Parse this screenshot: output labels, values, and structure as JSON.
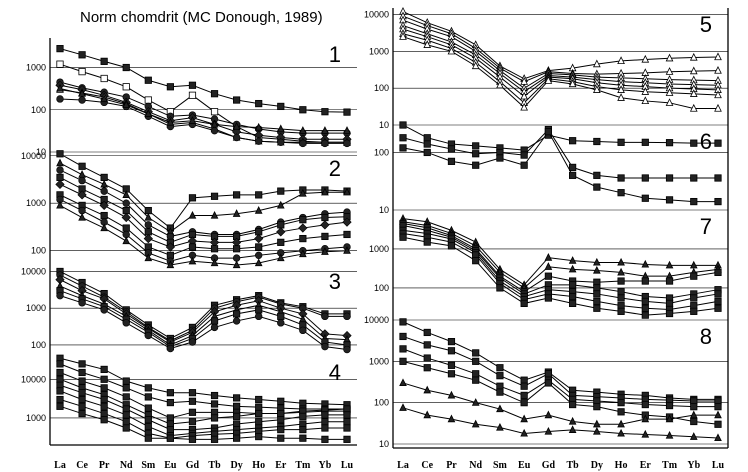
{
  "title": "Norm chomdrit (MC Donough, 1989)",
  "elements": [
    "La",
    "Ce",
    "Pr",
    "Nd",
    "Sm",
    "Eu",
    "Gd",
    "Tb",
    "Dy",
    "Ho",
    "Er",
    "Tm",
    "Yb",
    "Lu"
  ],
  "colors": {
    "axis": "#000000",
    "grid": "#000000",
    "series": "#000000",
    "marker_fill_dark": "#222222",
    "marker_fill_light": "#ffffff"
  },
  "chart_data": [
    {
      "type": "line",
      "label": "1",
      "yscale": "log",
      "ylim": [
        10,
        5000
      ],
      "yticks": [
        "1000",
        "100",
        "10"
      ],
      "grid": true,
      "series": [
        {
          "marker": "square",
          "values": [
            2800,
            2000,
            1400,
            1000,
            500,
            350,
            380,
            240,
            170,
            140,
            120,
            100,
            90,
            88
          ]
        },
        {
          "marker": "square-open",
          "values": [
            1200,
            800,
            550,
            350,
            170,
            90,
            220,
            90,
            40,
            22,
            20,
            18,
            17,
            17
          ]
        },
        {
          "marker": "circle",
          "values": [
            450,
            330,
            260,
            200,
            120,
            70,
            75,
            60,
            45,
            35,
            30,
            28,
            28,
            28
          ]
        },
        {
          "marker": "diamond",
          "values": [
            380,
            300,
            220,
            150,
            90,
            55,
            65,
            45,
            30,
            25,
            22,
            20,
            20,
            20
          ]
        },
        {
          "marker": "triangle-open",
          "values": [
            300,
            250,
            200,
            140,
            80,
            45,
            50,
            35,
            22,
            18,
            17,
            17,
            17,
            17
          ]
        },
        {
          "marker": "circle",
          "values": [
            180,
            170,
            150,
            120,
            70,
            40,
            45,
            32,
            22,
            18,
            17,
            16,
            16,
            16
          ]
        },
        {
          "marker": "triangle",
          "values": [
            320,
            240,
            180,
            130,
            80,
            50,
            55,
            45,
            40,
            38,
            35,
            32,
            32,
            32
          ]
        }
      ]
    },
    {
      "type": "line",
      "label": "2",
      "yscale": "log",
      "ylim": [
        50,
        12000
      ],
      "yticks": [
        "10000",
        "1000",
        "100"
      ],
      "grid": true,
      "series": [
        {
          "marker": "square",
          "values": [
            11000,
            6000,
            3500,
            2000,
            700,
            300,
            1300,
            1400,
            1500,
            1500,
            1800,
            1900,
            1900,
            1800
          ]
        },
        {
          "marker": "triangle",
          "values": [
            7000,
            4000,
            2500,
            1500,
            500,
            250,
            550,
            550,
            600,
            700,
            900,
            1600,
            1700,
            1700
          ]
        },
        {
          "marker": "circle",
          "values": [
            5000,
            3000,
            1800,
            1000,
            350,
            200,
            250,
            220,
            220,
            280,
            400,
            500,
            600,
            650
          ]
        },
        {
          "marker": "square",
          "values": [
            3500,
            2000,
            1200,
            700,
            250,
            150,
            220,
            200,
            200,
            250,
            350,
            450,
            500,
            520
          ]
        },
        {
          "marker": "diamond",
          "values": [
            2500,
            1500,
            900,
            500,
            180,
            120,
            160,
            150,
            150,
            180,
            250,
            300,
            350,
            400
          ]
        },
        {
          "marker": "square",
          "values": [
            1500,
            900,
            550,
            300,
            120,
            80,
            120,
            110,
            110,
            120,
            150,
            180,
            200,
            220
          ]
        },
        {
          "marker": "circle",
          "values": [
            1200,
            700,
            400,
            220,
            90,
            60,
            80,
            70,
            70,
            80,
            90,
            100,
            110,
            120
          ]
        },
        {
          "marker": "triangle",
          "values": [
            900,
            500,
            300,
            160,
            70,
            50,
            60,
            55,
            50,
            55,
            70,
            85,
            95,
            100
          ]
        }
      ]
    },
    {
      "type": "line",
      "label": "3",
      "yscale": "log",
      "ylim": [
        50,
        15000
      ],
      "yticks": [
        "10000",
        "1000",
        "100"
      ],
      "grid": true,
      "series": [
        {
          "marker": "square",
          "values": [
            10000,
            5000,
            2500,
            900,
            350,
            150,
            300,
            1200,
            1700,
            2200,
            1400,
            1100,
            700,
            700
          ]
        },
        {
          "marker": "circle",
          "values": [
            8000,
            4000,
            2000,
            800,
            300,
            130,
            250,
            1000,
            1500,
            2000,
            1300,
            1000,
            600,
            600
          ]
        },
        {
          "marker": "diamond",
          "values": [
            6000,
            3000,
            1800,
            700,
            280,
            120,
            220,
            800,
            1200,
            1600,
            1000,
            700,
            200,
            180
          ]
        },
        {
          "marker": "triangle",
          "values": [
            4000,
            2200,
            1300,
            600,
            250,
            100,
            180,
            600,
            900,
            1200,
            800,
            500,
            150,
            140
          ]
        },
        {
          "marker": "square",
          "values": [
            3000,
            1800,
            1100,
            500,
            220,
            90,
            150,
            450,
            700,
            900,
            600,
            350,
            120,
            100
          ]
        },
        {
          "marker": "circle",
          "values": [
            2200,
            1400,
            900,
            400,
            180,
            80,
            120,
            300,
            450,
            600,
            400,
            250,
            90,
            75
          ]
        }
      ]
    },
    {
      "type": "line",
      "label": "4",
      "yscale": "log",
      "ylim": [
        200,
        40000
      ],
      "yticks": [
        "10000",
        "1000"
      ],
      "grid": true,
      "series": [
        {
          "marker": "square",
          "values": [
            35000,
            25000,
            18000,
            9000,
            6000,
            4500,
            4500,
            3800,
            3300,
            3000,
            2700,
            2400,
            2300,
            2200
          ]
        },
        {
          "marker": "square",
          "values": [
            25000,
            15000,
            10000,
            6000,
            3500,
            2500,
            2700,
            2300,
            2000,
            1900,
            1800,
            1700,
            1700,
            1700
          ]
        },
        {
          "marker": "square",
          "values": [
            15000,
            9000,
            6000,
            3500,
            1800,
            1000,
            1400,
            1400,
            1400,
            1300,
            1300,
            1400,
            1500,
            1500
          ]
        },
        {
          "marker": "square",
          "values": [
            10000,
            6000,
            4000,
            2200,
            1200,
            700,
            800,
            1000,
            1100,
            1300,
            1300,
            1500,
            1600,
            1700
          ]
        },
        {
          "marker": "square",
          "values": [
            7000,
            4500,
            3000,
            1700,
            900,
            500,
            500,
            550,
            700,
            800,
            900,
            1100,
            1200,
            1200
          ]
        },
        {
          "marker": "square",
          "values": [
            5000,
            3000,
            2000,
            1200,
            600,
            350,
            400,
            450,
            500,
            550,
            600,
            700,
            800,
            800
          ]
        },
        {
          "marker": "square",
          "values": [
            3000,
            2000,
            1300,
            800,
            400,
            300,
            350,
            380,
            400,
            450,
            500,
            500,
            550,
            550
          ]
        },
        {
          "marker": "square",
          "values": [
            2000,
            1300,
            900,
            550,
            300,
            300,
            280,
            280,
            300,
            330,
            300,
            300,
            280,
            280
          ]
        }
      ]
    },
    {
      "type": "line",
      "label": "5",
      "yscale": "log",
      "ylim": [
        10,
        15000
      ],
      "yticks": [
        "10000",
        "1000",
        "100",
        "10"
      ],
      "grid": true,
      "series": [
        {
          "marker": "triangle-open",
          "values": [
            12000,
            6000,
            3500,
            1500,
            400,
            180,
            300,
            350,
            450,
            550,
            600,
            650,
            680,
            700
          ]
        },
        {
          "marker": "triangle-open",
          "values": [
            9000,
            5000,
            3000,
            1200,
            350,
            150,
            280,
            250,
            240,
            250,
            260,
            280,
            290,
            300
          ]
        },
        {
          "marker": "triangle-open",
          "values": [
            7000,
            4000,
            2500,
            1000,
            300,
            100,
            250,
            230,
            200,
            190,
            180,
            170,
            165,
            160
          ]
        },
        {
          "marker": "triangle-open",
          "values": [
            5000,
            3000,
            1800,
            800,
            250,
            80,
            220,
            200,
            170,
            150,
            140,
            130,
            125,
            120
          ]
        },
        {
          "marker": "triangle-open",
          "values": [
            4000,
            2500,
            1500,
            650,
            200,
            60,
            200,
            180,
            140,
            120,
            110,
            100,
            95,
            90
          ]
        },
        {
          "marker": "triangle-open",
          "values": [
            3000,
            2000,
            1200,
            500,
            150,
            40,
            180,
            150,
            110,
            90,
            80,
            75,
            70,
            65
          ]
        },
        {
          "marker": "triangle-open",
          "values": [
            2500,
            1500,
            1000,
            400,
            120,
            30,
            160,
            130,
            90,
            55,
            45,
            40,
            28,
            28
          ]
        }
      ]
    },
    {
      "type": "line",
      "label": "6",
      "yscale": "log",
      "ylim": [
        10,
        300
      ],
      "yticks": [
        "100",
        "10"
      ],
      "grid": true,
      "series": [
        {
          "marker": "square",
          "values": [
            300,
            180,
            140,
            130,
            120,
            110,
            200,
            160,
            155,
            150,
            150,
            148,
            145,
            145
          ]
        },
        {
          "marker": "square",
          "values": [
            180,
            140,
            115,
            95,
            100,
            90,
            250,
            55,
            40,
            36,
            36,
            36,
            36,
            36
          ]
        },
        {
          "marker": "square",
          "values": [
            120,
            100,
            70,
            60,
            80,
            60,
            230,
            40,
            25,
            20,
            16,
            15,
            14,
            14
          ]
        }
      ]
    },
    {
      "type": "line",
      "label": "7",
      "yscale": "log",
      "ylim": [
        15,
        10000
      ],
      "yticks": [
        "1000",
        "100",
        "10"
      ],
      "grid": true,
      "series": [
        {
          "marker": "triangle",
          "values": [
            6000,
            5000,
            3000,
            1500,
            300,
            120,
            600,
            500,
            450,
            450,
            400,
            380,
            380,
            380
          ]
        },
        {
          "marker": "triangle",
          "values": [
            5000,
            4000,
            2500,
            1200,
            250,
            100,
            350,
            300,
            280,
            250,
            200,
            200,
            250,
            300
          ]
        },
        {
          "marker": "square",
          "values": [
            4500,
            3500,
            2200,
            1000,
            200,
            80,
            200,
            150,
            140,
            150,
            150,
            150,
            200,
            250
          ]
        },
        {
          "marker": "square",
          "values": [
            4000,
            3000,
            2000,
            900,
            180,
            70,
            120,
            120,
            100,
            80,
            60,
            55,
            70,
            90
          ]
        },
        {
          "marker": "square",
          "values": [
            3000,
            2500,
            1800,
            800,
            150,
            60,
            90,
            80,
            70,
            55,
            45,
            40,
            55,
            70
          ]
        },
        {
          "marker": "square",
          "values": [
            2500,
            2000,
            1500,
            700,
            130,
            50,
            70,
            60,
            45,
            35,
            30,
            28,
            35,
            45
          ]
        },
        {
          "marker": "square",
          "values": [
            2000,
            1500,
            1200,
            500,
            100,
            40,
            55,
            40,
            30,
            25,
            20,
            22,
            25,
            30
          ]
        }
      ]
    },
    {
      "type": "line",
      "label": "8",
      "yscale": "log",
      "ylim": [
        8,
        10000
      ],
      "yticks": [
        "10000",
        "1000",
        "100",
        "10"
      ],
      "grid": true,
      "series": [
        {
          "marker": "square",
          "values": [
            9000,
            5000,
            3000,
            1600,
            700,
            350,
            550,
            200,
            180,
            160,
            150,
            130,
            120,
            120
          ]
        },
        {
          "marker": "square",
          "values": [
            4000,
            2500,
            1800,
            1000,
            450,
            250,
            500,
            150,
            140,
            130,
            120,
            115,
            110,
            110
          ]
        },
        {
          "marker": "square",
          "values": [
            2000,
            1200,
            800,
            500,
            250,
            150,
            350,
            120,
            110,
            100,
            90,
            85,
            80,
            80
          ]
        },
        {
          "marker": "square",
          "values": [
            1000,
            700,
            500,
            350,
            180,
            100,
            300,
            90,
            80,
            60,
            50,
            45,
            35,
            30
          ]
        },
        {
          "marker": "triangle",
          "values": [
            300,
            200,
            150,
            100,
            70,
            40,
            50,
            35,
            30,
            30,
            40,
            40,
            50,
            50
          ]
        },
        {
          "marker": "triangle",
          "values": [
            75,
            50,
            40,
            30,
            25,
            18,
            20,
            22,
            20,
            18,
            17,
            16,
            15,
            14
          ]
        }
      ]
    }
  ]
}
